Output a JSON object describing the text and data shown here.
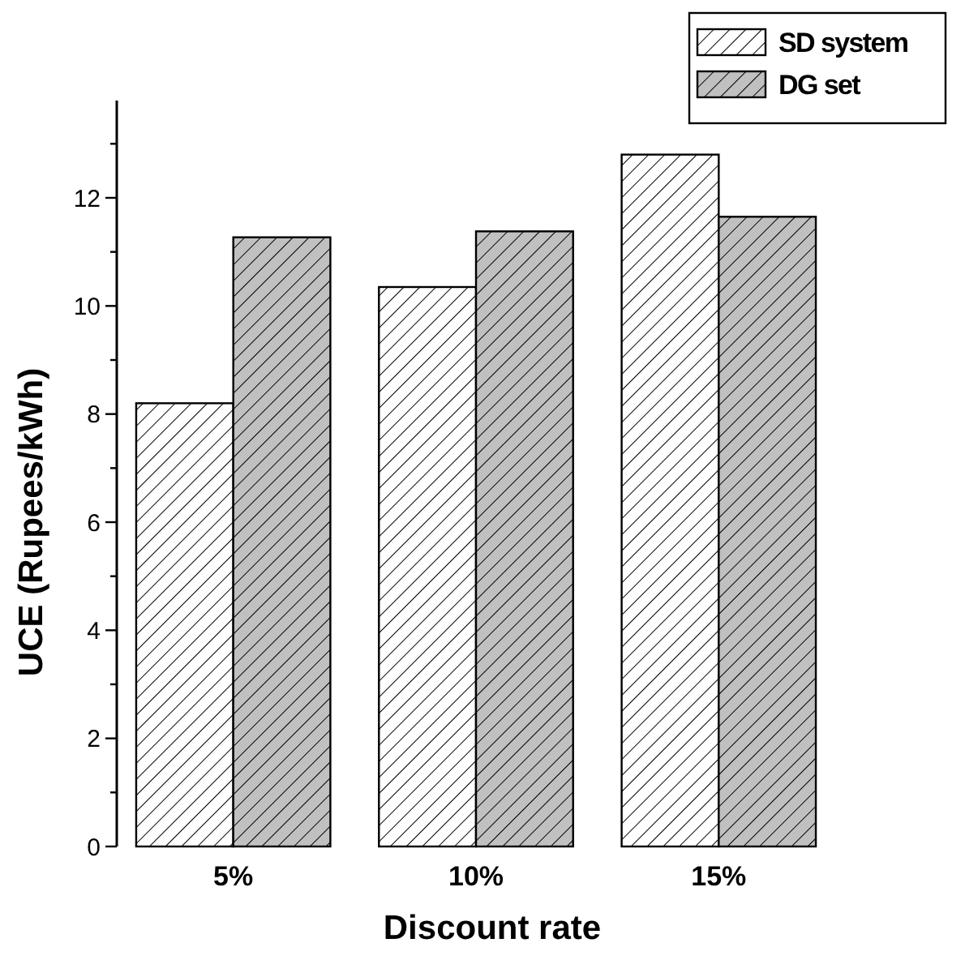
{
  "chart_data": {
    "type": "bar",
    "xlabel": "Discount rate",
    "ylabel": "UCE (Rupees/kWh)",
    "categories": [
      "5%",
      "10%",
      "15%"
    ],
    "series": [
      {
        "name": "SD system",
        "color": "#ffffff",
        "values": [
          8.2,
          10.35,
          12.8
        ]
      },
      {
        "name": "DG set",
        "color": "#c0c0c0",
        "values": [
          11.27,
          11.38,
          11.65
        ]
      }
    ],
    "ylim": [
      0,
      13.8
    ],
    "yticks": [
      0,
      {
        "value": 1,
        "label": null
      },
      2,
      {
        "value": 3,
        "label": null
      },
      4,
      {
        "value": 5,
        "label": null
      },
      6,
      {
        "value": 7,
        "label": null
      },
      8,
      {
        "value": 9,
        "label": null
      },
      10,
      {
        "value": 11,
        "label": null
      },
      12,
      {
        "value": 13,
        "label": null
      }
    ],
    "legend": "top right",
    "grid": false
  }
}
